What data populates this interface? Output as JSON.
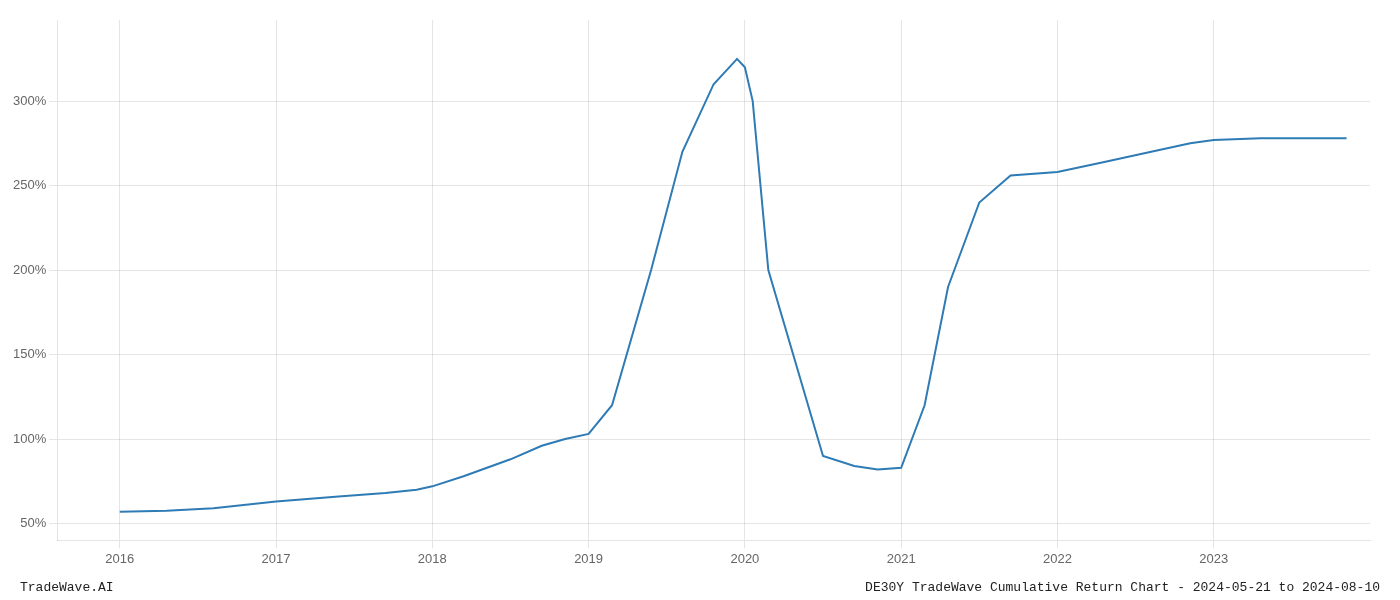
{
  "chart_data": {
    "type": "line",
    "x": [
      2016.0,
      2016.3,
      2016.6,
      2017.0,
      2017.4,
      2017.7,
      2017.9,
      2018.0,
      2018.2,
      2018.5,
      2018.7,
      2018.85,
      2019.0,
      2019.15,
      2019.4,
      2019.6,
      2019.8,
      2019.95,
      2020.0,
      2020.05,
      2020.15,
      2020.5,
      2020.7,
      2020.85,
      2021.0,
      2021.15,
      2021.3,
      2021.5,
      2021.7,
      2022.0,
      2022.3,
      2022.6,
      2022.85,
      2023.0,
      2023.3,
      2023.6,
      2023.85
    ],
    "values": [
      57,
      57.5,
      59,
      63,
      66,
      68,
      70,
      72,
      78,
      88,
      96,
      100,
      103,
      120,
      200,
      270,
      310,
      325,
      320,
      300,
      200,
      90,
      84,
      82,
      83,
      120,
      190,
      240,
      256,
      258,
      264,
      270,
      275,
      277,
      278,
      278,
      278
    ],
    "color": "#2e7bb5",
    "xlim": [
      2015.6,
      2024.0
    ],
    "ylim": [
      40,
      348
    ],
    "xticks": [
      2016,
      2017,
      2018,
      2019,
      2020,
      2021,
      2022,
      2023
    ],
    "yticks": [
      {
        "value": 50,
        "label": "50%"
      },
      {
        "value": 100,
        "label": "100%"
      },
      {
        "value": 150,
        "label": "150%"
      },
      {
        "value": 200,
        "label": "200%"
      },
      {
        "value": 250,
        "label": "250%"
      },
      {
        "value": 300,
        "label": "300%"
      }
    ],
    "grid": true,
    "annotations": [
      "TradeWave.AI",
      "DE30Y TradeWave Cumulative Return Chart - 2024-05-21 to 2024-08-10"
    ]
  }
}
